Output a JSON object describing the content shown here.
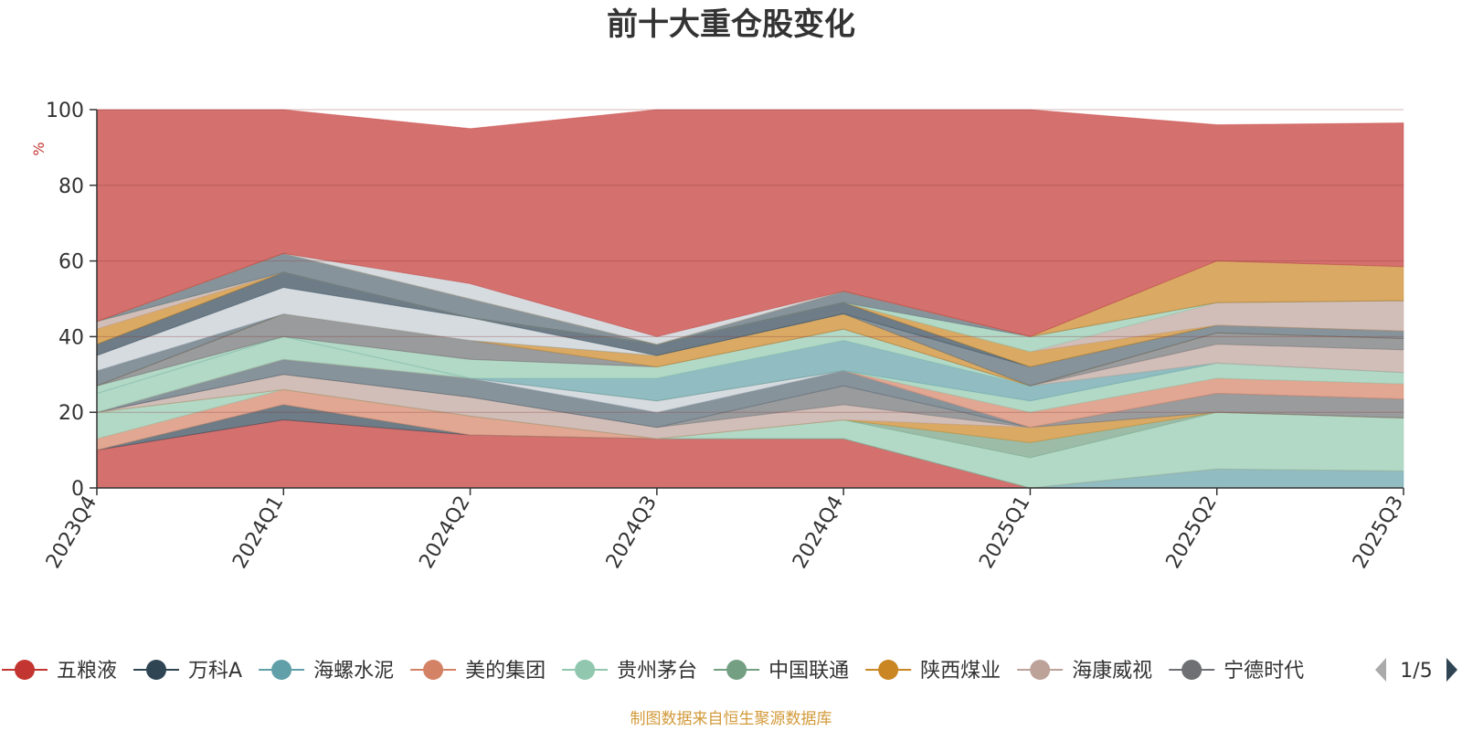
{
  "chart_data": {
    "type": "area",
    "title": "前十大重仓股变化",
    "ylabel": "%",
    "ylim": [
      0,
      100
    ],
    "yticks": [
      0,
      20,
      40,
      60,
      80,
      100
    ],
    "grid": true,
    "stacked": true,
    "categories": [
      "2023Q4",
      "2024Q1",
      "2024Q2",
      "2024Q3",
      "2024Q4",
      "2025Q1",
      "2025Q2",
      "2025Q3"
    ],
    "series": [
      {
        "name": "五粮液",
        "color": "#c23531",
        "values": [
          10,
          18,
          14,
          13,
          13,
          0,
          0,
          0
        ]
      },
      {
        "name": "万科A",
        "color": "#2f4554",
        "values": [
          0,
          4,
          0,
          0,
          0,
          0,
          0,
          0
        ]
      },
      {
        "name": "海螺水泥",
        "color": "#61a0a8",
        "values": [
          0,
          0,
          0,
          0,
          0,
          0,
          5,
          4.5
        ]
      },
      {
        "name": "美的集团",
        "color": "#d48265",
        "values": [
          3,
          4,
          5,
          0,
          0,
          0,
          0,
          0
        ]
      },
      {
        "name": "贵州茅台",
        "color": "#91c7ae",
        "values": [
          7,
          0,
          0,
          0,
          5,
          8,
          15,
          14
        ]
      },
      {
        "name": "中国联通",
        "color": "#749f83",
        "values": [
          0,
          0,
          0,
          0,
          0,
          4,
          0,
          0
        ]
      },
      {
        "name": "陕西煤业",
        "color": "#ca8622",
        "values": [
          0,
          0,
          0,
          0,
          0,
          4,
          0,
          0
        ]
      },
      {
        "name": "海康威视",
        "color": "#bda29a",
        "values": [
          0,
          4,
          5,
          3,
          4,
          0,
          0,
          0
        ]
      },
      {
        "name": "宁德时代",
        "color": "#6e7074",
        "values": [
          0,
          0,
          0,
          0,
          5,
          0,
          5,
          5
        ]
      },
      {
        "name": "",
        "color": "#546570",
        "values": [
          0,
          4,
          5,
          4,
          4,
          0,
          0,
          0
        ]
      },
      {
        "name": "",
        "color": "#c4ccd3",
        "values": [
          0,
          0,
          0,
          3,
          0,
          0,
          0,
          0
        ]
      },
      {
        "name": "",
        "color": "#d48265",
        "values": [
          0,
          0,
          0,
          0,
          0,
          4,
          4,
          4
        ]
      },
      {
        "name": "",
        "color": "#91c7ae",
        "values": [
          5,
          6,
          0,
          0,
          0,
          3,
          4,
          3
        ]
      },
      {
        "name": "",
        "color": "#61a0a8",
        "values": [
          0,
          0,
          0,
          6,
          8,
          4,
          0,
          0
        ]
      },
      {
        "name": "",
        "color": "#91c7ae",
        "values": [
          2,
          0,
          5,
          3,
          3,
          0,
          0,
          0
        ]
      },
      {
        "name": "",
        "color": "#bda29a",
        "values": [
          0,
          0,
          0,
          0,
          0,
          0,
          5,
          6
        ]
      },
      {
        "name": "",
        "color": "#6e7074",
        "values": [
          0,
          6,
          5,
          0,
          0,
          0,
          3,
          3
        ]
      },
      {
        "name": "",
        "color": "#ca8622",
        "values": [
          0,
          0,
          0,
          3,
          4,
          0,
          0,
          0
        ]
      },
      {
        "name": "",
        "color": "#546570",
        "values": [
          4,
          0,
          0,
          0,
          0,
          5,
          2,
          2
        ]
      },
      {
        "name": "",
        "color": "#c4ccd3",
        "values": [
          4,
          7,
          6,
          0,
          0,
          0,
          0,
          0
        ]
      },
      {
        "name": "",
        "color": "#2f4554",
        "values": [
          3,
          4,
          0,
          3,
          3,
          0,
          0,
          0
        ]
      },
      {
        "name": "",
        "color": "#ca8622",
        "values": [
          4,
          0,
          0,
          0,
          0,
          4,
          0,
          0
        ]
      },
      {
        "name": "",
        "color": "#bda29a",
        "values": [
          2,
          0,
          0,
          0,
          0,
          0,
          6,
          8
        ]
      },
      {
        "name": "",
        "color": "#91c7ae",
        "values": [
          0,
          0,
          0,
          0,
          0,
          4,
          0,
          0
        ]
      },
      {
        "name": "",
        "color": "#546570",
        "values": [
          0,
          5,
          5,
          0,
          3,
          0,
          0,
          0
        ]
      },
      {
        "name": "",
        "color": "#ca8622",
        "values": [
          0,
          0,
          0,
          0,
          0,
          0,
          11,
          9
        ]
      },
      {
        "name": "",
        "color": "#c4ccd3",
        "values": [
          0,
          0,
          4,
          2,
          0,
          0,
          0,
          0
        ]
      },
      {
        "name": "",
        "color": "#c23531",
        "values": [
          56,
          38,
          41,
          60,
          48,
          60,
          36,
          38
        ]
      }
    ]
  },
  "legend": {
    "page": "1/5"
  },
  "footer": {
    "source": "制图数据来自恒生聚源数据库"
  }
}
